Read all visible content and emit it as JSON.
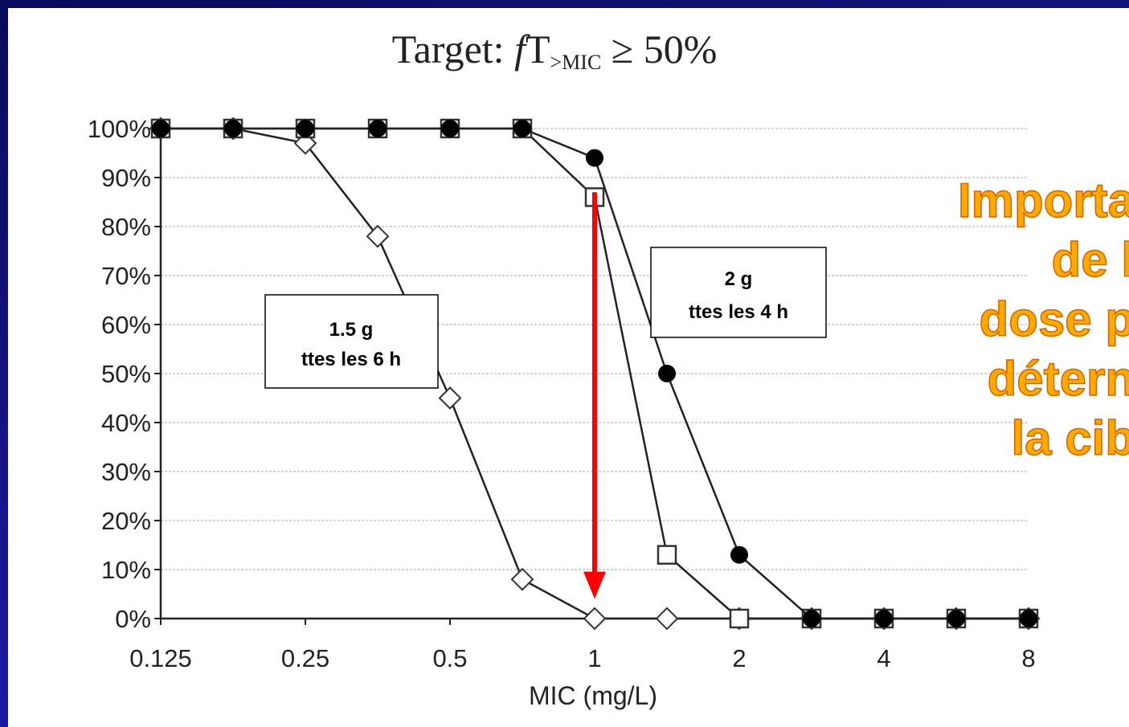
{
  "chart_data": {
    "type": "line",
    "title": "Target: fT>MIC ≥ 50%",
    "title_parts": {
      "prefix": "Target: ",
      "f": "f",
      "T": "T",
      "sub": ">MIC",
      "suffix": " ≥ 50%"
    },
    "xlabel": "MIC (mg/L)",
    "ylabel": "",
    "x_scale": "log2",
    "xlim": [
      0.125,
      8
    ],
    "ylim": [
      0,
      100
    ],
    "x_ticks": [
      {
        "value": 0.125,
        "label": "0.125"
      },
      {
        "value": 0.25,
        "label": "0.25"
      },
      {
        "value": 0.5,
        "label": "0.5"
      },
      {
        "value": 1,
        "label": "1"
      },
      {
        "value": 2,
        "label": "2"
      },
      {
        "value": 4,
        "label": "4"
      },
      {
        "value": 8,
        "label": "8"
      }
    ],
    "y_ticks": [
      {
        "value": 0,
        "label": "0%"
      },
      {
        "value": 10,
        "label": "10%"
      },
      {
        "value": 20,
        "label": "20%"
      },
      {
        "value": 30,
        "label": "30%"
      },
      {
        "value": 40,
        "label": "40%"
      },
      {
        "value": 50,
        "label": "50%"
      },
      {
        "value": 60,
        "label": "60%"
      },
      {
        "value": 70,
        "label": "70%"
      },
      {
        "value": 80,
        "label": "80%"
      },
      {
        "value": 90,
        "label": "90%"
      },
      {
        "value": 100,
        "label": "100%"
      }
    ],
    "grid": true,
    "series": [
      {
        "marker": "diamond-open",
        "x": [
          0.125,
          0.1768,
          0.25,
          0.3536,
          0.5,
          0.7071,
          1,
          1.4142,
          2,
          2.8284,
          4,
          5.6569,
          8
        ],
        "y": [
          100,
          100,
          97,
          78,
          45,
          8,
          0,
          0,
          0,
          0,
          0,
          0,
          0
        ]
      },
      {
        "marker": "square-open",
        "x": [
          0.125,
          0.1768,
          0.25,
          0.3536,
          0.5,
          0.7071,
          1,
          1.4142,
          2,
          2.8284,
          4,
          5.6569,
          8
        ],
        "y": [
          100,
          100,
          100,
          100,
          100,
          100,
          86,
          13,
          0,
          0,
          0,
          0,
          0
        ]
      },
      {
        "marker": "circle-filled",
        "x": [
          0.125,
          0.1768,
          0.25,
          0.3536,
          0.5,
          0.7071,
          1,
          1.4142,
          2,
          2.8284,
          4,
          5.6569,
          8
        ],
        "y": [
          100,
          100,
          100,
          100,
          100,
          100,
          94,
          50,
          13,
          0,
          0,
          0,
          0
        ]
      }
    ],
    "annotations": [
      {
        "line1": "1.5 g",
        "line2": "ttes les 6 h"
      },
      {
        "line1": "2 g",
        "line2": "ttes les 4 h"
      }
    ],
    "arrow": {
      "x": 1,
      "y_from": 87,
      "y_to": 4,
      "color": "#ff0000"
    }
  },
  "side_note": {
    "lines": [
      "Importa",
      "de l",
      "dose p",
      "détern",
      "la cib"
    ],
    "color": "#ffaa00",
    "outline_color": "#d06400"
  },
  "frame_color": "#13137a"
}
